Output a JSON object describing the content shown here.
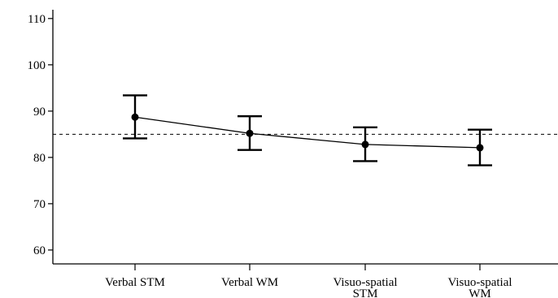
{
  "chart_data": {
    "type": "line",
    "title": "",
    "xlabel": "",
    "ylabel": "",
    "ylim": [
      57,
      114
    ],
    "yticks": [
      60,
      70,
      80,
      90,
      100,
      110
    ],
    "grid": false,
    "categories": [
      [
        "Verbal STM"
      ],
      [
        "Verbal WM"
      ],
      [
        "Visuo-spatial",
        "STM"
      ],
      [
        "Visuo-spatial",
        "WM"
      ]
    ],
    "series": [
      {
        "values": [
          88.7,
          85.2,
          82.8,
          82.1
        ],
        "error_low": [
          84.1,
          81.6,
          79.2,
          78.3
        ],
        "error_high": [
          93.4,
          88.9,
          86.5,
          86.0
        ]
      }
    ],
    "reference_line": {
      "y": 85,
      "style": "dashed"
    },
    "colors": {
      "line": "#000000",
      "marker": "#000000",
      "reference": "#000000"
    }
  }
}
